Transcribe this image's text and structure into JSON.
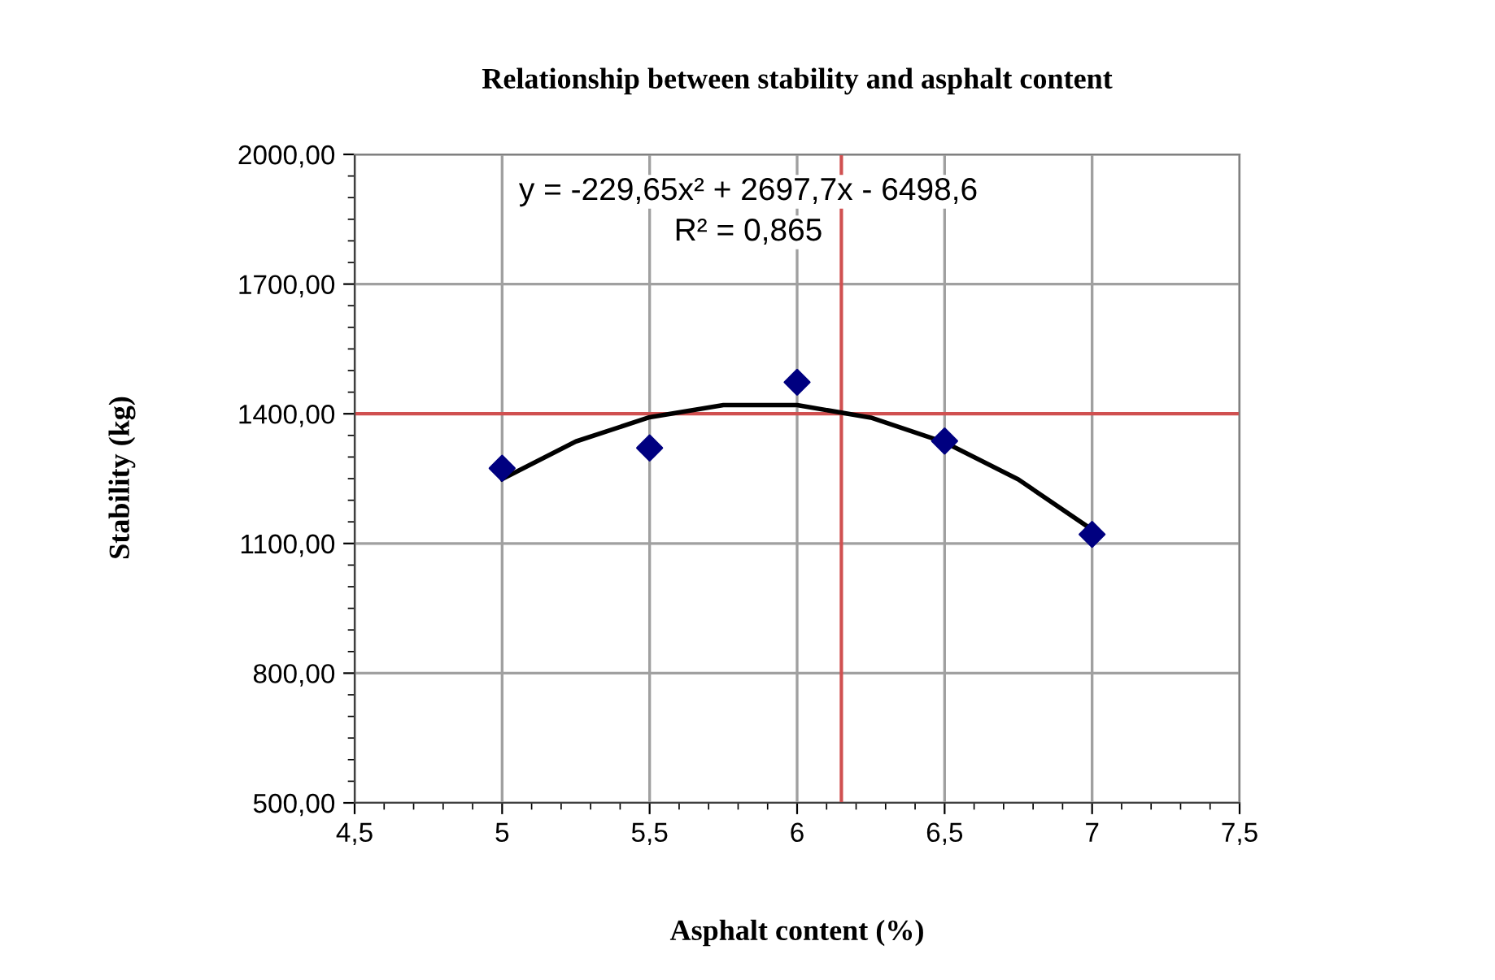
{
  "chart_data": {
    "type": "scatter",
    "title": "Relationship between stability and asphalt content",
    "xlabel": "Asphalt content (%)",
    "ylabel": "Stability (kg)",
    "xlim": [
      4.5,
      7.5
    ],
    "xticks": [
      {
        "value": 4.5,
        "label": "4,5"
      },
      5,
      {
        "value": 5.5,
        "label": "5,5"
      },
      6,
      {
        "value": 6.5,
        "label": "6,5"
      },
      7,
      {
        "value": 7.5,
        "label": "7,5"
      }
    ],
    "ylim": [
      500,
      2000
    ],
    "yticks": [
      {
        "value": 500,
        "label": "500,00"
      },
      {
        "value": 800,
        "label": "800,00"
      },
      {
        "value": 1100,
        "label": "1100,00"
      },
      {
        "value": 1400,
        "label": "1400,00"
      },
      {
        "value": 1700,
        "label": "1700,00"
      },
      {
        "value": 2000,
        "label": "2000,00"
      }
    ],
    "grid": true,
    "legend": false,
    "series": [
      {
        "type": "scatter",
        "color": "#000080",
        "marker": "diamond",
        "x": [
          5,
          5.5,
          6,
          6.5,
          7
        ],
        "values": [
          1274,
          1321,
          1473,
          1337,
          1121
        ]
      },
      {
        "type": "line",
        "color": "#000000",
        "marker": "none",
        "line_style": "solid",
        "x": [
          5,
          5.25,
          5.5,
          5.75,
          6,
          6.25,
          6.5,
          6.75,
          7
        ],
        "values": [
          1249,
          1336,
          1392,
          1420,
          1420,
          1391,
          1334,
          1248,
          1132
        ]
      }
    ],
    "ref_lines": [
      {
        "axis": "y",
        "value": 1400,
        "label": null,
        "color": "#d05050"
      },
      {
        "axis": "x",
        "value": 6.15,
        "label": null,
        "color": "#d05050"
      }
    ],
    "annotations": [
      "y = -229,65x² + 2697,7x - 6498,6",
      "R² = 0,865"
    ]
  }
}
